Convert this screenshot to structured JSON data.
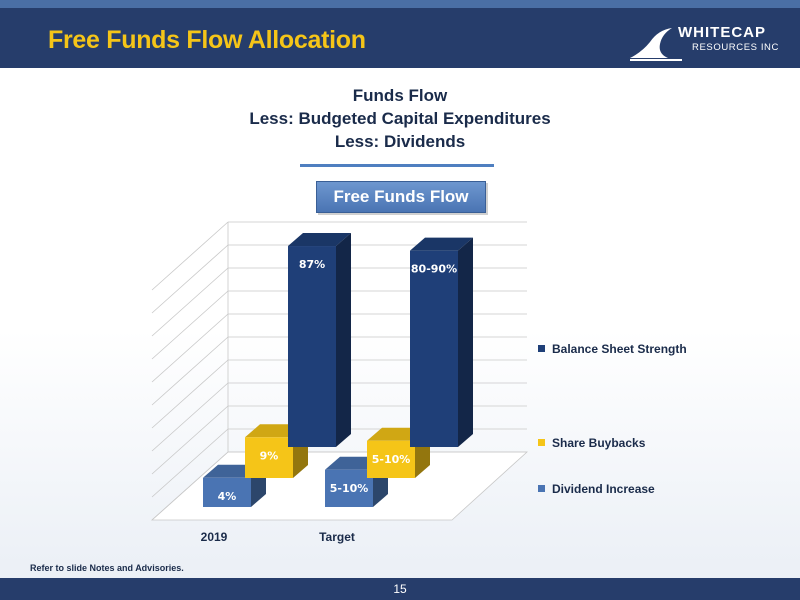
{
  "header": {
    "title": "Free Funds Flow Allocation",
    "logo_name": "WHITECAP",
    "logo_sub": "RESOURCES INC"
  },
  "chart_title_lines": [
    "Funds Flow",
    "Less: Budgeted Capital Expenditures",
    "Less: Dividends"
  ],
  "box_label": "Free Funds Flow",
  "chart_data": {
    "type": "bar",
    "categories": [
      "2019",
      "Target"
    ],
    "series": [
      {
        "name": "Dividend Increase",
        "labels": [
          "4%",
          "5-10%"
        ],
        "values": [
          4,
          7.5
        ],
        "color": "#4a74b3"
      },
      {
        "name": "Share Buybacks",
        "labels": [
          "9%",
          "5-10%"
        ],
        "values": [
          9,
          7.5
        ],
        "color": "#f5c518"
      },
      {
        "name": "Balance Sheet Strength",
        "labels": [
          "87%",
          "80-90%"
        ],
        "values": [
          87,
          85
        ],
        "color": "#1f3f78"
      }
    ],
    "ylim": [
      0,
      100
    ],
    "grid": true,
    "legend": "right",
    "three_d": true
  },
  "legend_items": [
    {
      "label": "Balance Sheet Strength",
      "color": "#1f3f78"
    },
    {
      "label": "Share Buybacks",
      "color": "#f5c518"
    },
    {
      "label": "Dividend Increase",
      "color": "#4a74b3"
    }
  ],
  "footnote": "Refer to slide Notes and Advisories.",
  "page_number": "15"
}
